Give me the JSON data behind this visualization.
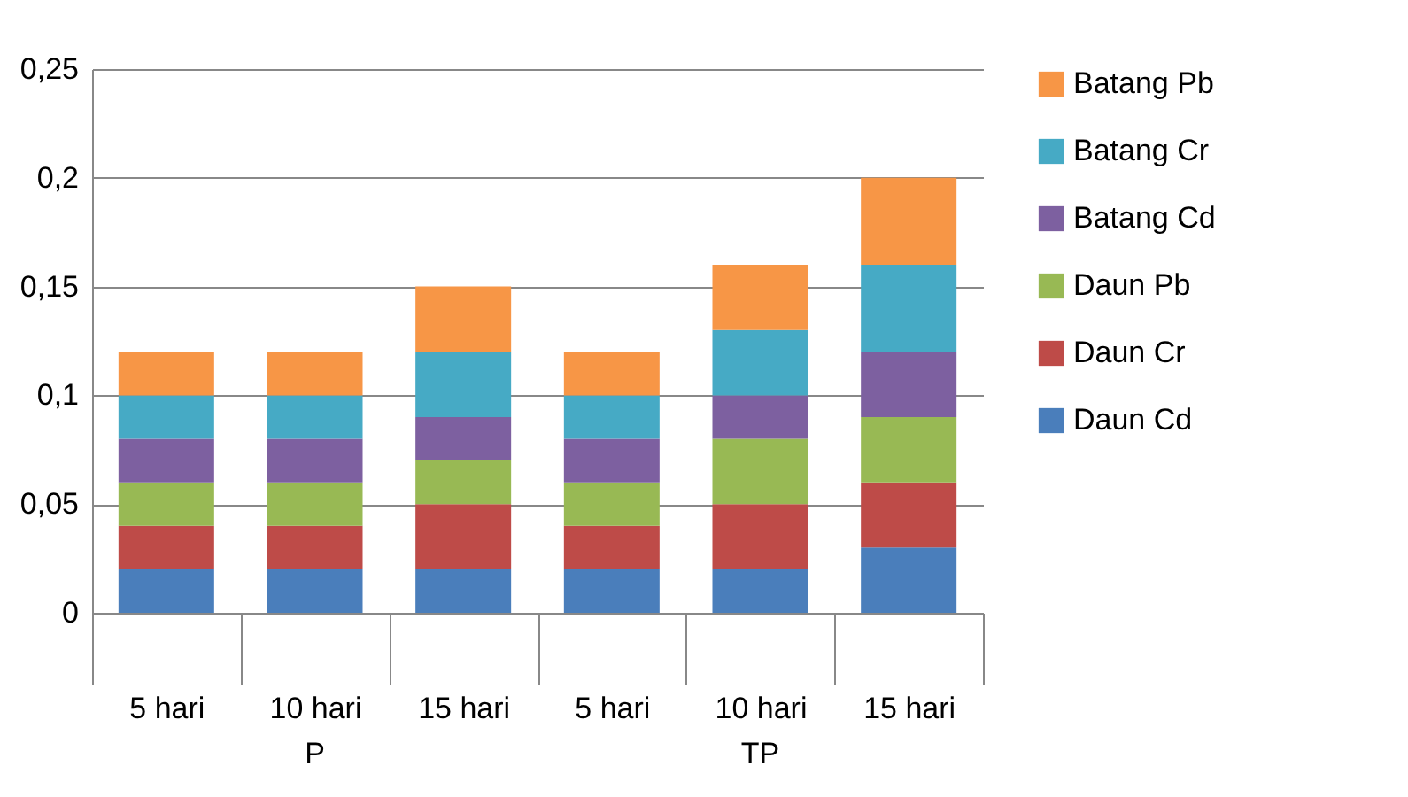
{
  "chart_data": {
    "type": "bar",
    "stacked": true,
    "categories": [
      "5 hari",
      "10 hari",
      "15 hari",
      "5 hari",
      "10 hari",
      "15 hari"
    ],
    "series": [
      {
        "name": "Daun Cd",
        "color": "#4a7ebb",
        "values": [
          0.02,
          0.02,
          0.02,
          0.02,
          0.02,
          0.03
        ]
      },
      {
        "name": "Daun Cr",
        "color": "#be4b48",
        "values": [
          0.02,
          0.02,
          0.03,
          0.02,
          0.03,
          0.03
        ]
      },
      {
        "name": "Daun Pb",
        "color": "#98b954",
        "values": [
          0.02,
          0.02,
          0.02,
          0.02,
          0.03,
          0.03
        ]
      },
      {
        "name": "Batang Cd",
        "color": "#7d60a0",
        "values": [
          0.02,
          0.02,
          0.02,
          0.02,
          0.02,
          0.03
        ]
      },
      {
        "name": "Batang Cr",
        "color": "#46aac5",
        "values": [
          0.02,
          0.02,
          0.03,
          0.02,
          0.03,
          0.04
        ]
      },
      {
        "name": "Batang Pb",
        "color": "#f79646",
        "values": [
          0.02,
          0.02,
          0.03,
          0.02,
          0.03,
          0.04
        ]
      }
    ],
    "ylim": [
      0,
      0.25
    ],
    "yticks": [
      {
        "value": 0,
        "label": "0"
      },
      {
        "value": 0.05,
        "label": "0,05"
      },
      {
        "value": 0.1,
        "label": "0,1"
      },
      {
        "value": 0.15,
        "label": "0,15"
      },
      {
        "value": 0.2,
        "label": "0,2"
      },
      {
        "value": 0.25,
        "label": "0,25"
      }
    ],
    "grid": "y",
    "legend": "right",
    "annotations": [
      "P",
      "TP"
    ]
  }
}
